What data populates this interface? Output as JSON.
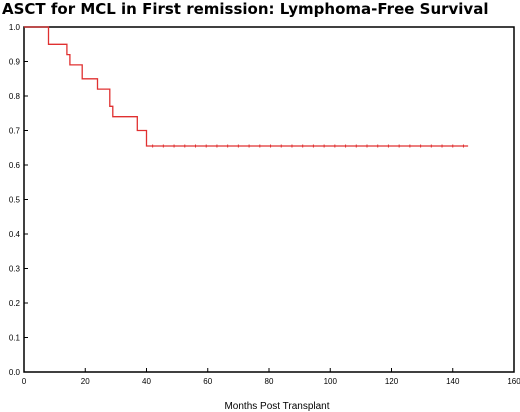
{
  "chart_data": {
    "type": "line",
    "title": "ASCT for MCL in First remission: Lymphoma-Free Survival",
    "xlabel": "Months Post Transplant",
    "ylabel": "",
    "xlim": [
      0,
      160
    ],
    "ylim": [
      0.0,
      1.0
    ],
    "x_ticks": [
      "0",
      "20",
      "40",
      "60",
      "80",
      "100",
      "120",
      "140",
      "160"
    ],
    "y_ticks": [
      "0.0",
      "0.1",
      "0.2",
      "0.3",
      "0.4",
      "0.5",
      "0.6",
      "0.7",
      "0.8",
      "0.9",
      "1.0"
    ],
    "grid": false,
    "legend": "none",
    "colors": {
      "series": "#e03030",
      "axis": "#000000"
    },
    "series": [
      {
        "step": true,
        "x": [
          0,
          7,
          8,
          12,
          14,
          15,
          17,
          19,
          22,
          24,
          26,
          28,
          29,
          35,
          37,
          39,
          40,
          145
        ],
        "y": [
          1.0,
          1.0,
          0.95,
          0.95,
          0.92,
          0.89,
          0.89,
          0.85,
          0.85,
          0.82,
          0.82,
          0.77,
          0.74,
          0.74,
          0.7,
          0.7,
          0.655,
          0.655
        ]
      }
    ]
  }
}
